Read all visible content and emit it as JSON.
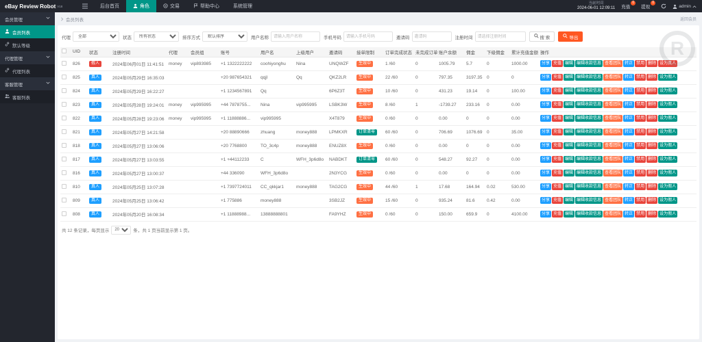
{
  "colors": {
    "accent": "#009688",
    "blue": "#1e9fff",
    "red": "#e8453c",
    "orange": "#ff7043",
    "export_orange": "#ff5722",
    "topbar_bg": "#23262e"
  },
  "topbar": {
    "logo": "eBay Review Robot",
    "version": "V18",
    "tabs": [
      {
        "label": "后台首页",
        "icon": "",
        "active": false
      },
      {
        "label": "角色",
        "icon": "person-icon",
        "active": true
      },
      {
        "label": "交易",
        "icon": "trade-icon",
        "active": false
      },
      {
        "label": "帮助中心",
        "icon": "help-icon",
        "active": false
      },
      {
        "label": "系统管理",
        "icon": "",
        "active": false
      }
    ],
    "time_label": "当前时间",
    "time_value": "2024-06-01 12:09:11",
    "recharge_label": "充值",
    "recharge_badge": "0",
    "withdraw_label": "提现",
    "withdraw_badge": "0",
    "username": "admin"
  },
  "sidebar": {
    "items": [
      {
        "label": "会员管理",
        "type": "group",
        "icon": "",
        "active": false
      },
      {
        "label": "会员列表",
        "type": "item",
        "icon": "user-icon",
        "active": true
      },
      {
        "label": "默认等级",
        "type": "item",
        "icon": "link-icon",
        "active": false
      },
      {
        "label": "代理管理",
        "type": "group",
        "icon": "",
        "active": false
      },
      {
        "label": "代理列表",
        "type": "item",
        "icon": "link-icon",
        "active": false
      },
      {
        "label": "客服管理",
        "type": "group",
        "icon": "",
        "active": false
      },
      {
        "label": "客服列表",
        "type": "item",
        "icon": "users-icon",
        "active": false
      }
    ]
  },
  "breadcrumb": {
    "current": "会员列表",
    "back_link": "返回会员"
  },
  "filters": {
    "fields": [
      {
        "label": "代理",
        "type": "select",
        "value": "全部"
      },
      {
        "label": "状态",
        "type": "select",
        "value": "所有状态"
      },
      {
        "label": "排序方式",
        "type": "select",
        "value": "默认排序"
      },
      {
        "label": "用户名称",
        "type": "input",
        "placeholder": "请输入用户名称"
      },
      {
        "label": "手机号码",
        "type": "input",
        "placeholder": "请输入手机号码"
      },
      {
        "label": "邀请码",
        "type": "input",
        "placeholder": "邀请码"
      },
      {
        "label": "注册时间",
        "type": "input",
        "placeholder": "请选择注册时间"
      }
    ],
    "search_label": "搜 索",
    "export_label": "导出"
  },
  "table": {
    "headers": [
      "UID",
      "状态",
      "注册时间",
      "代理",
      "会员组",
      "账号",
      "用户名",
      "上级用户",
      "邀请码",
      "接单限制",
      "订单完成状态",
      "未完成订单",
      "账户余额",
      "佣金",
      "下级佣金",
      "累计充值金额",
      "操作"
    ],
    "actions_common": [
      {
        "label": "分享",
        "color": "blue"
      },
      {
        "label": "充值",
        "color": "red"
      },
      {
        "label": "编辑",
        "color": "green"
      },
      {
        "label": "编辑收款信息",
        "color": "green"
      },
      {
        "label": "查看团队",
        "color": "orange"
      },
      {
        "label": "转正",
        "color": "blue"
      },
      {
        "label": "禁用",
        "color": "red"
      },
      {
        "label": "删除",
        "color": "red"
      }
    ],
    "rows": [
      {
        "uid": "826",
        "status": {
          "text": "假人",
          "color": "red"
        },
        "reg_time": "2024年06月01日 11:41:51",
        "agent": "money",
        "member_group": "vip893985",
        "account": "+1 1322222222",
        "username": "coohiyonghu",
        "parent_user": "Nina",
        "invite_code": "UNQWZF",
        "order_limit": {
          "text": "生效中",
          "color": "orange"
        },
        "orders_done": "1 /60",
        "unfinished": "0",
        "balance": "1005.79",
        "commission": "5.7",
        "sub_commission": "0",
        "total_recharge": "1000.00",
        "last_action": {
          "label": "设为真人",
          "color": "red"
        }
      },
      {
        "uid": "825",
        "status": {
          "text": "真人",
          "color": "blue"
        },
        "reg_time": "2024年05月29日 16:35:03",
        "agent": "",
        "member_group": "",
        "account": "+20 987654321",
        "username": "qqjl",
        "parent_user": "Qq",
        "invite_code": "QKZ2LR",
        "order_limit": {
          "text": "生效中",
          "color": "orange"
        },
        "orders_done": "22 /60",
        "unfinished": "0",
        "balance": "797.35",
        "commission": "3197.35",
        "sub_commission": "0",
        "total_recharge": "0",
        "last_action": {
          "label": "设为假人",
          "color": "green"
        }
      },
      {
        "uid": "824",
        "status": {
          "text": "真人",
          "color": "blue"
        },
        "reg_time": "2024年05月29日 16:22:27",
        "agent": "",
        "member_group": "",
        "account": "+1 1234567891",
        "username": "Qq",
        "parent_user": "",
        "invite_code": "6P6Z3T",
        "order_limit": {
          "text": "生效中",
          "color": "orange"
        },
        "orders_done": "10 /60",
        "unfinished": "0",
        "balance": "431.23",
        "commission": "19.14",
        "sub_commission": "0",
        "total_recharge": "100.00",
        "last_action": {
          "label": "设为假人",
          "color": "green"
        }
      },
      {
        "uid": "823",
        "status": {
          "text": "真人",
          "color": "blue"
        },
        "reg_time": "2024年05月28日 19:24:01",
        "agent": "money",
        "member_group": "vip995995",
        "account": "+44 7878755...",
        "username": "Nina",
        "parent_user": "vip995995",
        "invite_code": "LSBK3W",
        "order_limit": {
          "text": "生效中",
          "color": "orange"
        },
        "orders_done": "8 /60",
        "unfinished": "1",
        "balance": "-1739.27",
        "commission": "233.16",
        "sub_commission": "0",
        "total_recharge": "0.00",
        "last_action": {
          "label": "设为假人",
          "color": "green"
        }
      },
      {
        "uid": "822",
        "status": {
          "text": "真人",
          "color": "blue"
        },
        "reg_time": "2024年05月28日 19:23:06",
        "agent": "money",
        "member_group": "vip995995",
        "account": "+1 11888886...",
        "username": "vip995995",
        "parent_user": "",
        "invite_code": "X4T879",
        "order_limit": {
          "text": "生效中",
          "color": "orange"
        },
        "orders_done": "0 /60",
        "unfinished": "0",
        "balance": "0.00",
        "commission": "0",
        "sub_commission": "0",
        "total_recharge": "0.00",
        "last_action": {
          "label": "设为假人",
          "color": "green"
        }
      },
      {
        "uid": "821",
        "status": {
          "text": "真人",
          "color": "blue"
        },
        "reg_time": "2024年05月27日 14:21:58",
        "agent": "",
        "member_group": "",
        "account": "+20 88890666",
        "username": "zhuang",
        "parent_user": "money888",
        "invite_code": "LPMKXR",
        "order_limit": {
          "text": "订单清零",
          "color": "green"
        },
        "orders_done": "60 /60",
        "unfinished": "0",
        "balance": "706.69",
        "commission": "1076.69",
        "sub_commission": "0",
        "total_recharge": "35.00",
        "last_action": {
          "label": "设为假人",
          "color": "green"
        }
      },
      {
        "uid": "818",
        "status": {
          "text": "真人",
          "color": "blue"
        },
        "reg_time": "2024年05月27日 13:06:06",
        "agent": "",
        "member_group": "",
        "account": "+20 7768800",
        "username": "TO_3c4p",
        "parent_user": "money888",
        "invite_code": "ENUZ8X",
        "order_limit": {
          "text": "生效中",
          "color": "orange"
        },
        "orders_done": "0 /60",
        "unfinished": "0",
        "balance": "0.00",
        "commission": "0",
        "sub_commission": "0",
        "total_recharge": "0.00",
        "last_action": {
          "label": "设为假人",
          "color": "green"
        }
      },
      {
        "uid": "817",
        "status": {
          "text": "真人",
          "color": "blue"
        },
        "reg_time": "2024年05月27日 13:03:55",
        "agent": "",
        "member_group": "",
        "account": "+1 +44112233",
        "username": "C",
        "parent_user": "WFH_3p6d8o",
        "invite_code": "NABDKT",
        "order_limit": {
          "text": "订单清零",
          "color": "green"
        },
        "orders_done": "60 /60",
        "unfinished": "0",
        "balance": "548.27",
        "commission": "92.27",
        "sub_commission": "0",
        "total_recharge": "0.00",
        "last_action": {
          "label": "设为假人",
          "color": "green"
        }
      },
      {
        "uid": "816",
        "status": {
          "text": "真人",
          "color": "blue"
        },
        "reg_time": "2024年05月27日 13:00:37",
        "agent": "",
        "member_group": "",
        "account": "+44 336090",
        "username": "WFH_3p6d8o",
        "parent_user": "",
        "invite_code": "2N3YCG",
        "order_limit": {
          "text": "生效中",
          "color": "orange"
        },
        "orders_done": "0 /60",
        "unfinished": "0",
        "balance": "0.00",
        "commission": "0",
        "sub_commission": "0",
        "total_recharge": "0.00",
        "last_action": {
          "label": "设为假人",
          "color": "green"
        }
      },
      {
        "uid": "810",
        "status": {
          "text": "真人",
          "color": "blue"
        },
        "reg_time": "2024年05月25日 13:07:28",
        "agent": "",
        "member_group": "",
        "account": "+1 7397724011",
        "username": "CC_qkkjar1",
        "parent_user": "money888",
        "invite_code": "TAG2CG",
        "order_limit": {
          "text": "生效中",
          "color": "orange"
        },
        "orders_done": "44 /60",
        "unfinished": "1",
        "balance": "17.68",
        "commission": "164.94",
        "sub_commission": "0.02",
        "total_recharge": "530.00",
        "last_action": {
          "label": "设为假人",
          "color": "green"
        }
      },
      {
        "uid": "809",
        "status": {
          "text": "真人",
          "color": "blue"
        },
        "reg_time": "2024年05月25日 13:06:42",
        "agent": "",
        "member_group": "",
        "account": "+1 775886",
        "username": "money888",
        "parent_user": "",
        "invite_code": "3SB2JZ",
        "order_limit": {
          "text": "生效中",
          "color": "orange"
        },
        "orders_done": "15 /60",
        "unfinished": "0",
        "balance": "935.24",
        "commission": "81.6",
        "sub_commission": "0.42",
        "total_recharge": "0.00",
        "last_action": {
          "label": "设为假人",
          "color": "green"
        }
      },
      {
        "uid": "808",
        "status": {
          "text": "真人",
          "color": "blue"
        },
        "reg_time": "2024年05月20日 16:08:34",
        "agent": "",
        "member_group": "",
        "account": "+1 11888988...",
        "username": "13888888801",
        "parent_user": "",
        "invite_code": "FA9YHZ",
        "order_limit": {
          "text": "生效中",
          "color": "orange"
        },
        "orders_done": "0 /60",
        "unfinished": "0",
        "balance": "150.00",
        "commission": "659.9",
        "sub_commission": "0",
        "total_recharge": "4100.00",
        "last_action": {
          "label": "设为假人",
          "color": "green"
        }
      }
    ]
  },
  "footer": {
    "prefix": "共 12 条记录，每页显示",
    "page_size": "20",
    "suffix": "条，共 1 页当前显示第 1 页。"
  },
  "watermark_letter": "R"
}
